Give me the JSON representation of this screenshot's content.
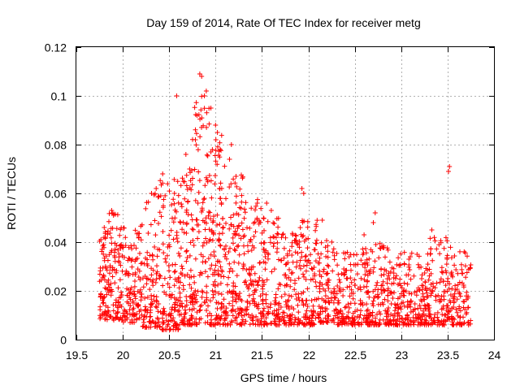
{
  "chart_data": {
    "type": "scatter",
    "title": "Day 159 of 2014, Rate Of TEC Index for receiver metg",
    "xlabel": "GPS time / hours",
    "ylabel": "ROTI / TECUs",
    "xlim": [
      19.5,
      24
    ],
    "ylim": [
      0,
      0.12
    ],
    "xticks": [
      19.5,
      20,
      20.5,
      21,
      21.5,
      22,
      22.5,
      23,
      23.5,
      24
    ],
    "xtick_labels": [
      "19.5",
      "20",
      "20.5",
      "21",
      "21.5",
      "22",
      "22.5",
      "23",
      "23.5",
      "24"
    ],
    "yticks": [
      0,
      0.02,
      0.04,
      0.06,
      0.08,
      0.1,
      0.12
    ],
    "ytick_labels": [
      "0",
      "0.02",
      "0.04",
      "0.06",
      "0.08",
      "0.1",
      "0.12"
    ],
    "grid": true,
    "marker": "+",
    "series": [
      {
        "name": "ROTI",
        "color": "#ff0000",
        "bands": [
          {
            "x": [
              19.75,
              19.85
            ],
            "ymin": 0.008,
            "ymax": 0.046,
            "n": 70
          },
          {
            "x": [
              19.85,
              20.0
            ],
            "ymin": 0.008,
            "ymax": 0.052,
            "n": 90
          },
          {
            "x": [
              20.0,
              20.2
            ],
            "ymin": 0.007,
            "ymax": 0.048,
            "n": 110
          },
          {
            "x": [
              20.2,
              20.4
            ],
            "ymin": 0.005,
            "ymax": 0.06,
            "n": 110
          },
          {
            "x": [
              20.4,
              20.6
            ],
            "ymin": 0.004,
            "ymax": 0.066,
            "n": 120
          },
          {
            "x": [
              20.6,
              20.75
            ],
            "ymin": 0.006,
            "ymax": 0.07,
            "n": 110
          },
          {
            "x": [
              20.75,
              20.95
            ],
            "ymin": 0.006,
            "ymax": 0.1,
            "n": 130
          },
          {
            "x": [
              20.95,
              21.1
            ],
            "ymin": 0.006,
            "ymax": 0.085,
            "n": 120
          },
          {
            "x": [
              21.1,
              21.3
            ],
            "ymin": 0.006,
            "ymax": 0.07,
            "n": 120
          },
          {
            "x": [
              21.3,
              21.5
            ],
            "ymin": 0.006,
            "ymax": 0.058,
            "n": 110
          },
          {
            "x": [
              21.5,
              21.7
            ],
            "ymin": 0.006,
            "ymax": 0.05,
            "n": 110
          },
          {
            "x": [
              21.7,
              21.9
            ],
            "ymin": 0.006,
            "ymax": 0.045,
            "n": 100
          },
          {
            "x": [
              21.9,
              22.1
            ],
            "ymin": 0.006,
            "ymax": 0.05,
            "n": 110
          },
          {
            "x": [
              22.1,
              22.3
            ],
            "ymin": 0.007,
            "ymax": 0.042,
            "n": 100
          },
          {
            "x": [
              22.3,
              22.5
            ],
            "ymin": 0.006,
            "ymax": 0.036,
            "n": 100
          },
          {
            "x": [
              22.5,
              22.7
            ],
            "ymin": 0.006,
            "ymax": 0.038,
            "n": 100
          },
          {
            "x": [
              22.7,
              22.9
            ],
            "ymin": 0.006,
            "ymax": 0.04,
            "n": 100
          },
          {
            "x": [
              22.9,
              23.1
            ],
            "ymin": 0.006,
            "ymax": 0.036,
            "n": 100
          },
          {
            "x": [
              23.1,
              23.3
            ],
            "ymin": 0.006,
            "ymax": 0.036,
            "n": 100
          },
          {
            "x": [
              23.3,
              23.5
            ],
            "ymin": 0.006,
            "ymax": 0.042,
            "n": 100
          },
          {
            "x": [
              23.5,
              23.75
            ],
            "ymin": 0.006,
            "ymax": 0.038,
            "n": 110
          }
        ],
        "peaks": [
          {
            "x": 20.58,
            "y": 0.1
          },
          {
            "x": 20.83,
            "y": 0.109
          },
          {
            "x": 20.85,
            "y": 0.108
          },
          {
            "x": 20.9,
            "y": 0.102
          },
          {
            "x": 20.88,
            "y": 0.1
          },
          {
            "x": 20.8,
            "y": 0.092
          },
          {
            "x": 20.95,
            "y": 0.095
          },
          {
            "x": 21.0,
            "y": 0.088
          },
          {
            "x": 21.02,
            "y": 0.085
          },
          {
            "x": 20.68,
            "y": 0.076
          },
          {
            "x": 20.72,
            "y": 0.07
          },
          {
            "x": 20.43,
            "y": 0.068
          },
          {
            "x": 21.17,
            "y": 0.08
          },
          {
            "x": 21.15,
            "y": 0.074
          },
          {
            "x": 21.22,
            "y": 0.067
          },
          {
            "x": 21.05,
            "y": 0.078
          },
          {
            "x": 21.93,
            "y": 0.062
          },
          {
            "x": 21.95,
            "y": 0.06
          },
          {
            "x": 21.55,
            "y": 0.056
          },
          {
            "x": 21.6,
            "y": 0.053
          },
          {
            "x": 22.72,
            "y": 0.052
          },
          {
            "x": 22.7,
            "y": 0.048
          },
          {
            "x": 22.6,
            "y": 0.043
          },
          {
            "x": 23.52,
            "y": 0.071
          },
          {
            "x": 23.51,
            "y": 0.069
          },
          {
            "x": 23.33,
            "y": 0.045
          },
          {
            "x": 22.15,
            "y": 0.049
          },
          {
            "x": 19.8,
            "y": 0.046
          },
          {
            "x": 19.88,
            "y": 0.053
          },
          {
            "x": 19.9,
            "y": 0.051
          },
          {
            "x": 20.31,
            "y": 0.06
          },
          {
            "x": 20.36,
            "y": 0.062
          }
        ]
      }
    ]
  }
}
